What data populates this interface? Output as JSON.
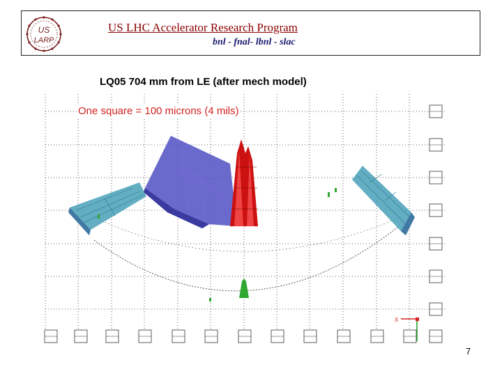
{
  "header": {
    "title": "US LHC Accelerator Research Program",
    "subtitle": "bnl - fnal- lbnl - slac",
    "logo_text_top": "US",
    "logo_text_bottom": "LARP"
  },
  "slide": {
    "title": "LQ05  704 mm from LE (after mech model)",
    "caption": "One square = 100 microns (4 mils)",
    "axis_marker": "X",
    "page_number": "7"
  },
  "colors": {
    "title": "#8b0000",
    "subtitle": "#1a1a70",
    "caption": "#d42020",
    "logo": "#7a1f1f",
    "peak": "#cc1111",
    "blue_surface": "#5a5ac8",
    "cyan_surface": "#48a0b8",
    "green_marks": "#2ea82e"
  }
}
